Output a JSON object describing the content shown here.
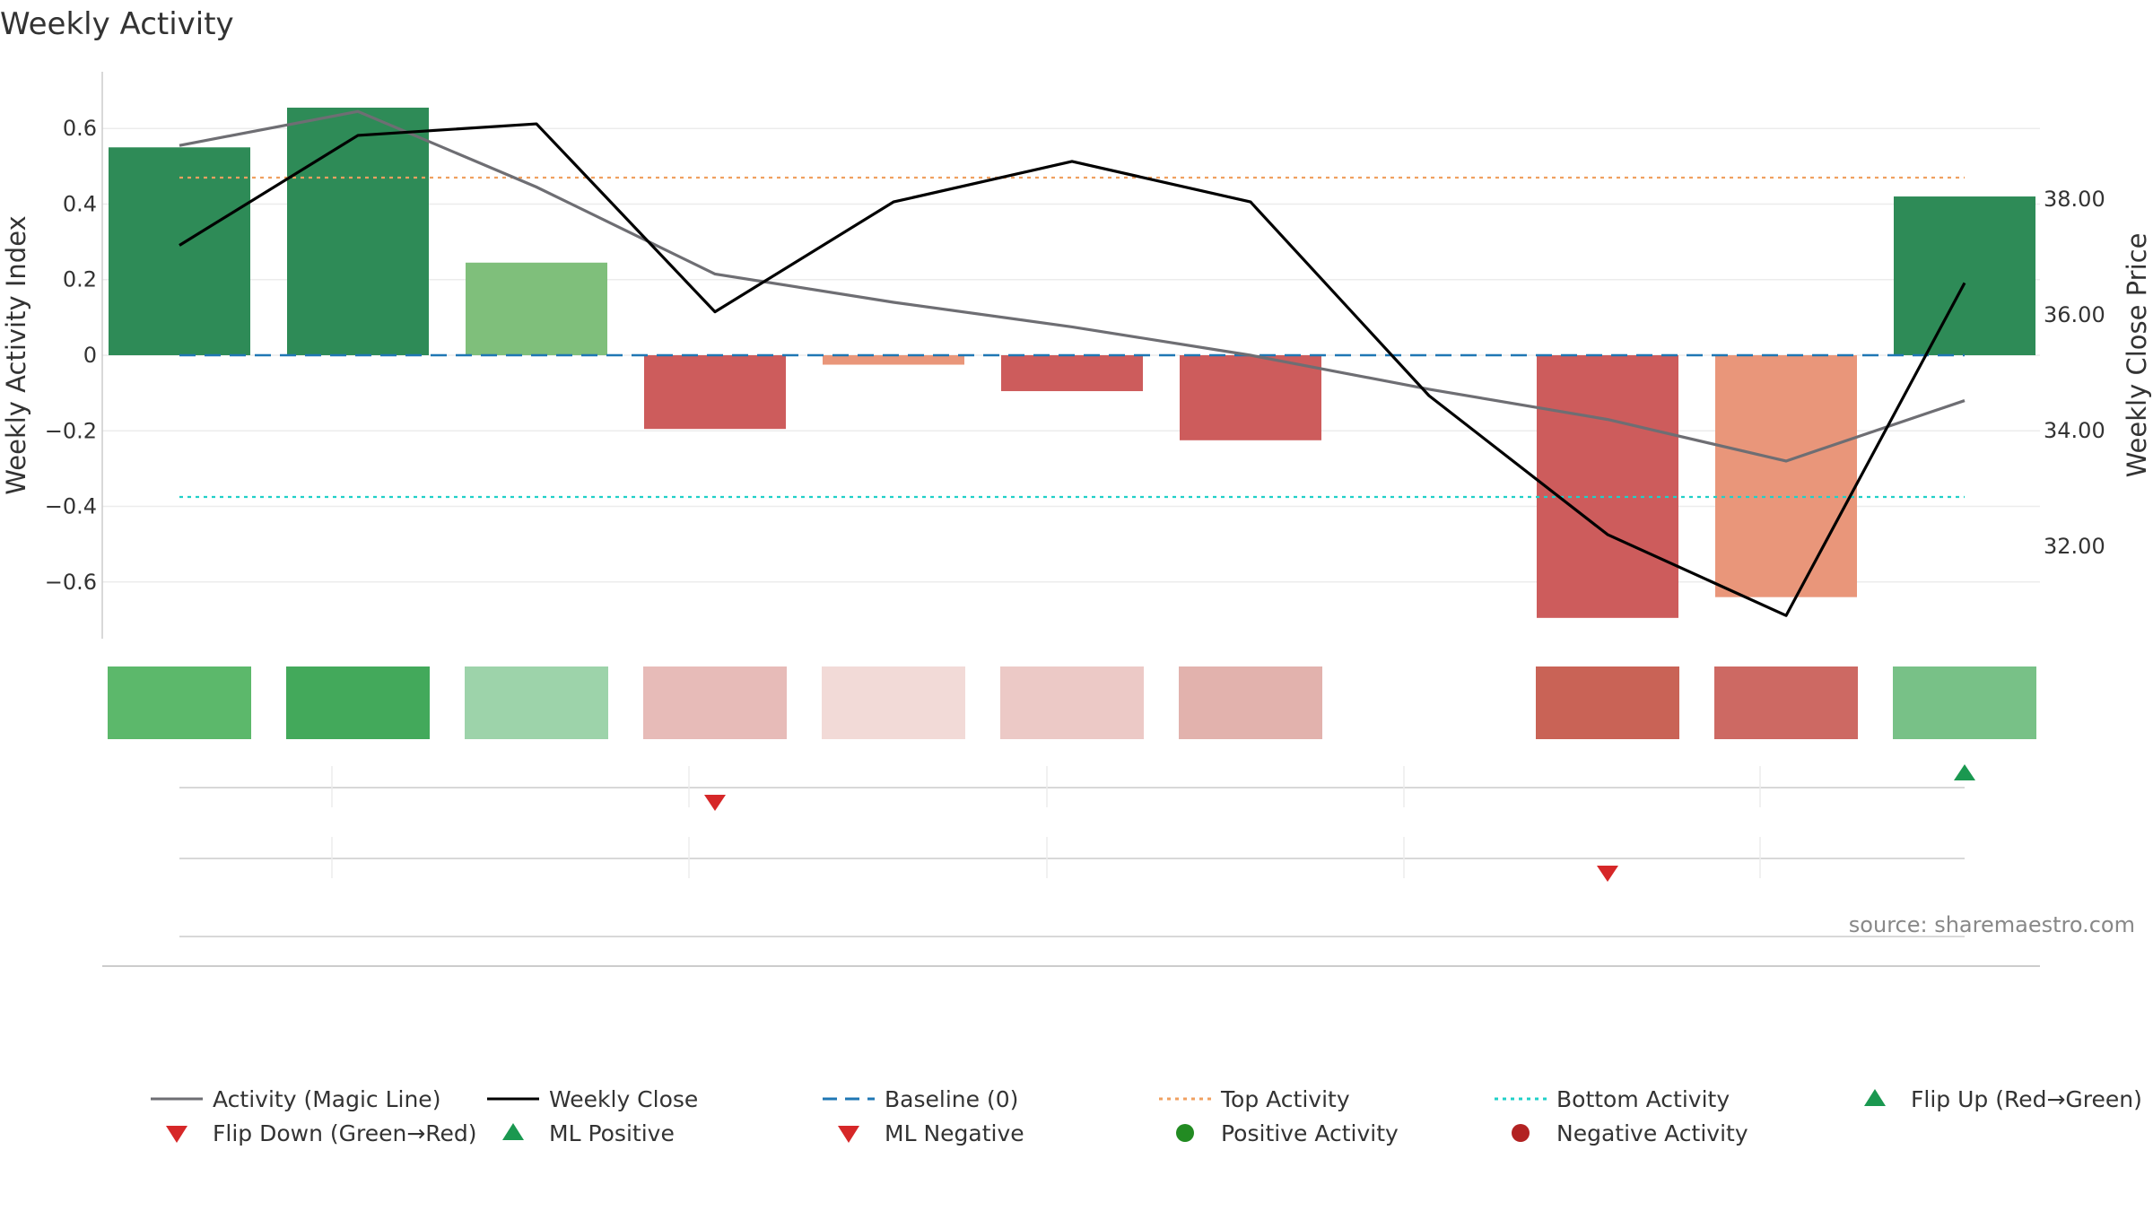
{
  "chart_data": {
    "type": "bar",
    "title": "Weekly Activity",
    "ylabel_left": "Weekly Activity Index",
    "ylabel_right": "Weekly Close Price",
    "ylim_left": [
      -0.75,
      0.75
    ],
    "ylim_right": [
      30.4,
      40.2
    ],
    "left_ticks": [
      0.6,
      0.4,
      0.2,
      0,
      -0.2,
      -0.4,
      -0.6
    ],
    "left_tick_labels": [
      "0.6",
      "0.4",
      "0.2",
      "0",
      "−0.2",
      "−0.4",
      "−0.6"
    ],
    "right_ticks": [
      38,
      36,
      34,
      32
    ],
    "right_tick_labels": [
      "38.00",
      "36.00",
      "34.00",
      "32.00"
    ],
    "weeks": 11,
    "activity": [
      0.55,
      0.655,
      0.245,
      -0.195,
      -0.025,
      -0.095,
      -0.225,
      null,
      -0.695,
      -0.64,
      0.42
    ],
    "bar_colors": [
      "#2e8b57",
      "#2e8b57",
      "#7fbf7b",
      "#cd5c5c",
      "#e9967a",
      "#cd5c5c",
      "#cd5c5c",
      null,
      "#cd5c5c",
      "#e9967a",
      "#2e8b57"
    ],
    "magic_line": [
      0.555,
      0.645,
      0.445,
      0.215,
      0.14,
      0.075,
      0.0,
      -0.09,
      -0.17,
      -0.28,
      -0.12
    ],
    "weekly_close": [
      37.2,
      39.1,
      39.3,
      36.05,
      37.95,
      38.65,
      37.95,
      34.6,
      32.2,
      30.8,
      36.55
    ],
    "top_activity": 0.47,
    "bottom_activity": -0.375,
    "baseline": 0,
    "heat_colors": [
      "#5cb86b",
      "#43a95b",
      "#9dd3aa",
      "#e7bbb8",
      "#f2dad7",
      "#ecc9c6",
      "#e2b2ad",
      null,
      "#c96356",
      "#cd6963",
      "#78c187"
    ],
    "flip_up_weeks": [
      10
    ],
    "flip_down_weeks": [
      3,
      8
    ],
    "colors": {
      "magic_line": "#6e6e73",
      "weekly_close": "#000000",
      "baseline": "#1f77b4",
      "top_activity": "#f0a060",
      "bottom_activity": "#20d0c8",
      "flip_up": "#1a9850",
      "flip_down": "#d62728",
      "ml_positive": "#1a9850",
      "ml_negative": "#d62728",
      "positive_activity": "#228b22",
      "negative_activity": "#b22222"
    },
    "source": "source: sharemaestro.com",
    "legend": [
      {
        "label": "Activity (Magic Line)",
        "marker": "line-solid-grey"
      },
      {
        "label": "Weekly Close",
        "marker": "line-solid-black"
      },
      {
        "label": "Baseline (0)",
        "marker": "line-dash-blue"
      },
      {
        "label": "Top Activity",
        "marker": "line-dot-orange"
      },
      {
        "label": "Bottom Activity",
        "marker": "line-dot-cyan"
      },
      {
        "label": "Flip Up (Red→Green)",
        "marker": "triangle-up-green"
      },
      {
        "label": "Flip Down (Green→Red)",
        "marker": "triangle-down-red"
      },
      {
        "label": "ML Positive",
        "marker": "triangle-up-green"
      },
      {
        "label": "ML Negative",
        "marker": "triangle-down-red"
      },
      {
        "label": "Positive Activity",
        "marker": "circle-green"
      },
      {
        "label": "Negative Activity",
        "marker": "circle-red"
      }
    ]
  }
}
